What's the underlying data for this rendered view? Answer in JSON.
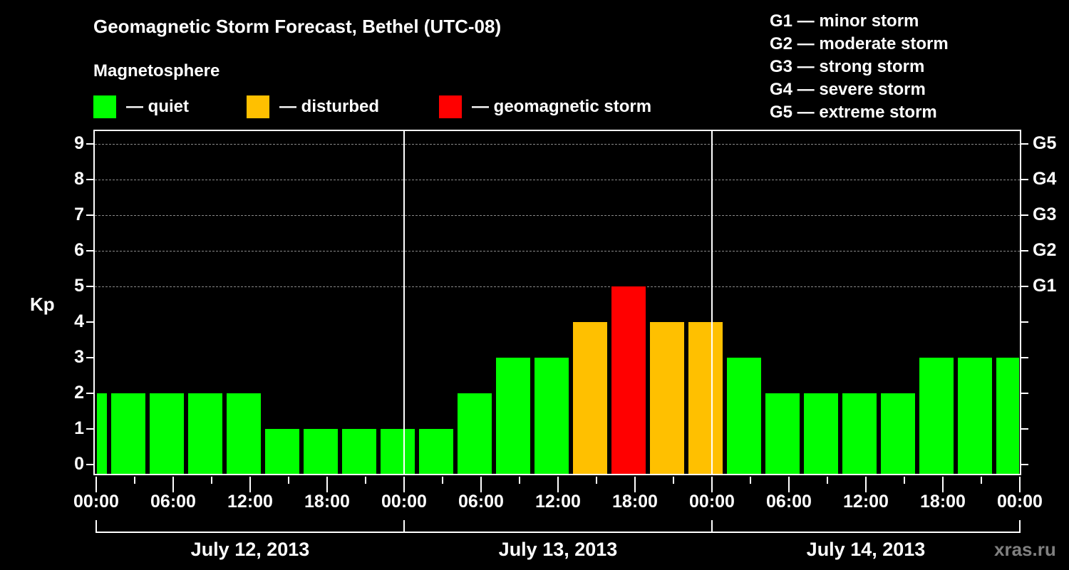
{
  "chart_data": {
    "type": "bar",
    "title": "Geomagnetic Storm Forecast, Bethel (UTC-08)",
    "subtitle": "Magnetosphere",
    "ylabel": "Kp",
    "ylim": [
      0,
      9
    ],
    "yticks": [
      "0",
      "1",
      "2",
      "3",
      "4",
      "5",
      "6",
      "7",
      "8",
      "9"
    ],
    "right_axis_labels": [
      {
        "kp": 5,
        "label": "G1"
      },
      {
        "kp": 6,
        "label": "G2"
      },
      {
        "kp": 7,
        "label": "G3"
      },
      {
        "kp": 8,
        "label": "G4"
      },
      {
        "kp": 9,
        "label": "G5"
      }
    ],
    "grid": "dashed horizontal at Kp 5-9",
    "x_tick_labels": [
      "00:00",
      "06:00",
      "12:00",
      "18:00",
      "00:00",
      "06:00",
      "12:00",
      "18:00",
      "00:00",
      "06:00",
      "12:00",
      "18:00",
      "00:00"
    ],
    "date_labels": [
      "July 12, 2013",
      "July 13, 2013",
      "July 14, 2013"
    ],
    "interval_hours": 3,
    "categories": [
      "Jul12 ~00:00",
      "Jul12 01:30",
      "Jul12 04:30",
      "Jul12 07:30",
      "Jul12 10:30",
      "Jul12 13:30",
      "Jul12 16:30",
      "Jul12 19:30",
      "Jul12 22:30",
      "Jul13 01:30",
      "Jul13 04:30",
      "Jul13 07:30",
      "Jul13 10:30",
      "Jul13 13:30",
      "Jul13 16:30",
      "Jul13 19:30",
      "Jul13 22:30",
      "Jul14 01:30",
      "Jul14 04:30",
      "Jul14 07:30",
      "Jul14 10:30",
      "Jul14 13:30",
      "Jul14 16:30",
      "Jul14 19:30",
      "Jul14 22:30"
    ],
    "values": [
      2,
      2,
      2,
      2,
      2,
      1,
      1,
      1,
      1,
      1,
      2,
      3,
      3,
      4,
      5,
      4,
      4,
      3,
      2,
      2,
      2,
      2,
      3,
      3,
      3
    ],
    "status": [
      "quiet",
      "quiet",
      "quiet",
      "quiet",
      "quiet",
      "quiet",
      "quiet",
      "quiet",
      "quiet",
      "quiet",
      "quiet",
      "quiet",
      "quiet",
      "disturbed",
      "storm",
      "disturbed",
      "disturbed",
      "quiet",
      "quiet",
      "quiet",
      "quiet",
      "quiet",
      "quiet",
      "quiet",
      "quiet"
    ],
    "legend": [
      {
        "label": "— quiet",
        "color": "#00ff00"
      },
      {
        "label": "— disturbed",
        "color": "#ffc000"
      },
      {
        "label": "— geomagnetic storm",
        "color": "#ff0000"
      }
    ],
    "storm_scale": [
      "G1 — minor storm",
      "G2 — moderate storm",
      "G3 — strong storm",
      "G4 — severe storm",
      "G5 — extreme storm"
    ]
  },
  "watermark": "xras.ru"
}
